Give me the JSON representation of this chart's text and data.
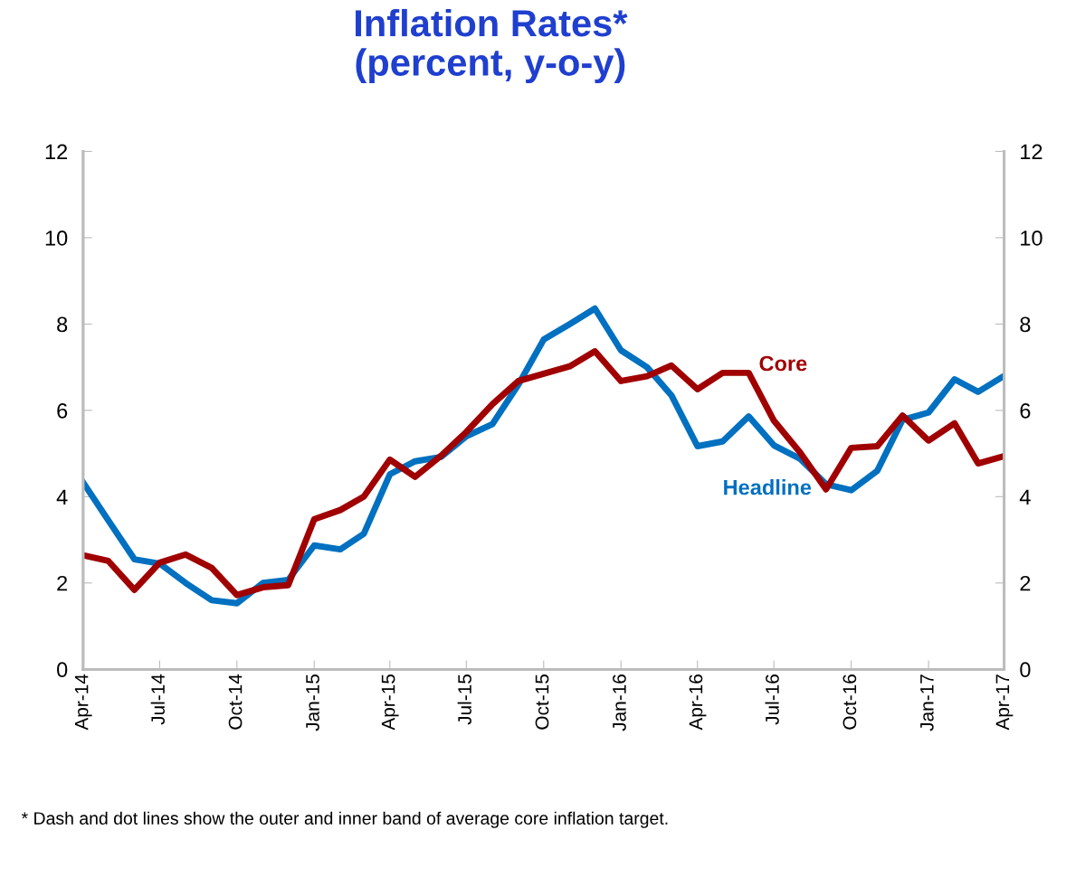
{
  "chart_data": {
    "type": "line",
    "title": "Inflation Rates*\n(percent, y-o-y)",
    "x": [
      "2014-04",
      "2014-05",
      "2014-06",
      "2014-07",
      "2014-08",
      "2014-09",
      "2014-10",
      "2014-11",
      "2014-12",
      "2015-01",
      "2015-02",
      "2015-03",
      "2015-04",
      "2015-05",
      "2015-06",
      "2015-07",
      "2015-08",
      "2015-09",
      "2015-10",
      "2015-11",
      "2015-12",
      "2016-01",
      "2016-02",
      "2016-03",
      "2016-04",
      "2016-05",
      "2016-06",
      "2016-07",
      "2016-08",
      "2016-09",
      "2016-10",
      "2016-11",
      "2016-12",
      "2017-01",
      "2017-02",
      "2017-03",
      "2017-04"
    ],
    "series": [
      {
        "name": "Headline",
        "color": "#0070c0",
        "values": [
          4.33,
          3.45,
          2.55,
          2.45,
          2.0,
          1.6,
          1.53,
          2.0,
          2.07,
          2.87,
          2.78,
          3.14,
          4.52,
          4.82,
          4.92,
          5.4,
          5.68,
          6.6,
          7.64,
          8.0,
          8.36,
          7.39,
          7.0,
          6.35,
          5.17,
          5.28,
          5.86,
          5.19,
          4.88,
          4.29,
          4.15,
          4.6,
          5.78,
          5.95,
          6.72,
          6.43,
          6.8
        ]
      },
      {
        "name": "Core",
        "color": "#a00000",
        "values": [
          2.64,
          2.51,
          1.84,
          2.47,
          2.66,
          2.35,
          1.72,
          1.9,
          1.95,
          3.48,
          3.69,
          4.0,
          4.86,
          4.46,
          4.95,
          5.5,
          6.14,
          6.68,
          6.85,
          7.02,
          7.37,
          6.68,
          6.79,
          7.04,
          6.49,
          6.87,
          6.87,
          5.76,
          5.03,
          4.17,
          5.13,
          5.17,
          5.88,
          5.3,
          5.7,
          4.77,
          4.94
        ]
      }
    ],
    "xlim": [
      "2014-04",
      "2017-04"
    ],
    "xticks": [
      {
        "value": "2014-04",
        "label": "Apr-14"
      },
      {
        "value": "2014-07",
        "label": "Jul-14"
      },
      {
        "value": "2014-10",
        "label": "Oct-14"
      },
      {
        "value": "2015-01",
        "label": "Jan-15"
      },
      {
        "value": "2015-04",
        "label": "Apr-15"
      },
      {
        "value": "2015-07",
        "label": "Jul-15"
      },
      {
        "value": "2015-10",
        "label": "Oct-15"
      },
      {
        "value": "2016-01",
        "label": "Jan-16"
      },
      {
        "value": "2016-04",
        "label": "Apr-16"
      },
      {
        "value": "2016-07",
        "label": "Jul-16"
      },
      {
        "value": "2016-10",
        "label": "Oct-16"
      },
      {
        "value": "2017-01",
        "label": "Jan-17"
      },
      {
        "value": "2017-04",
        "label": "Apr-17"
      }
    ],
    "ylim": [
      0,
      12
    ],
    "yticks": [
      0,
      2,
      4,
      6,
      8,
      10,
      12
    ],
    "y2lim": [
      0,
      12
    ],
    "y2ticks": [
      0,
      2,
      4,
      6,
      8,
      10,
      12
    ],
    "grid": false,
    "legend": false,
    "marker": "none",
    "line_style": "solid",
    "annotations": [
      "* Dash and dot lines show the outer and inner band of average core inflation target."
    ]
  }
}
